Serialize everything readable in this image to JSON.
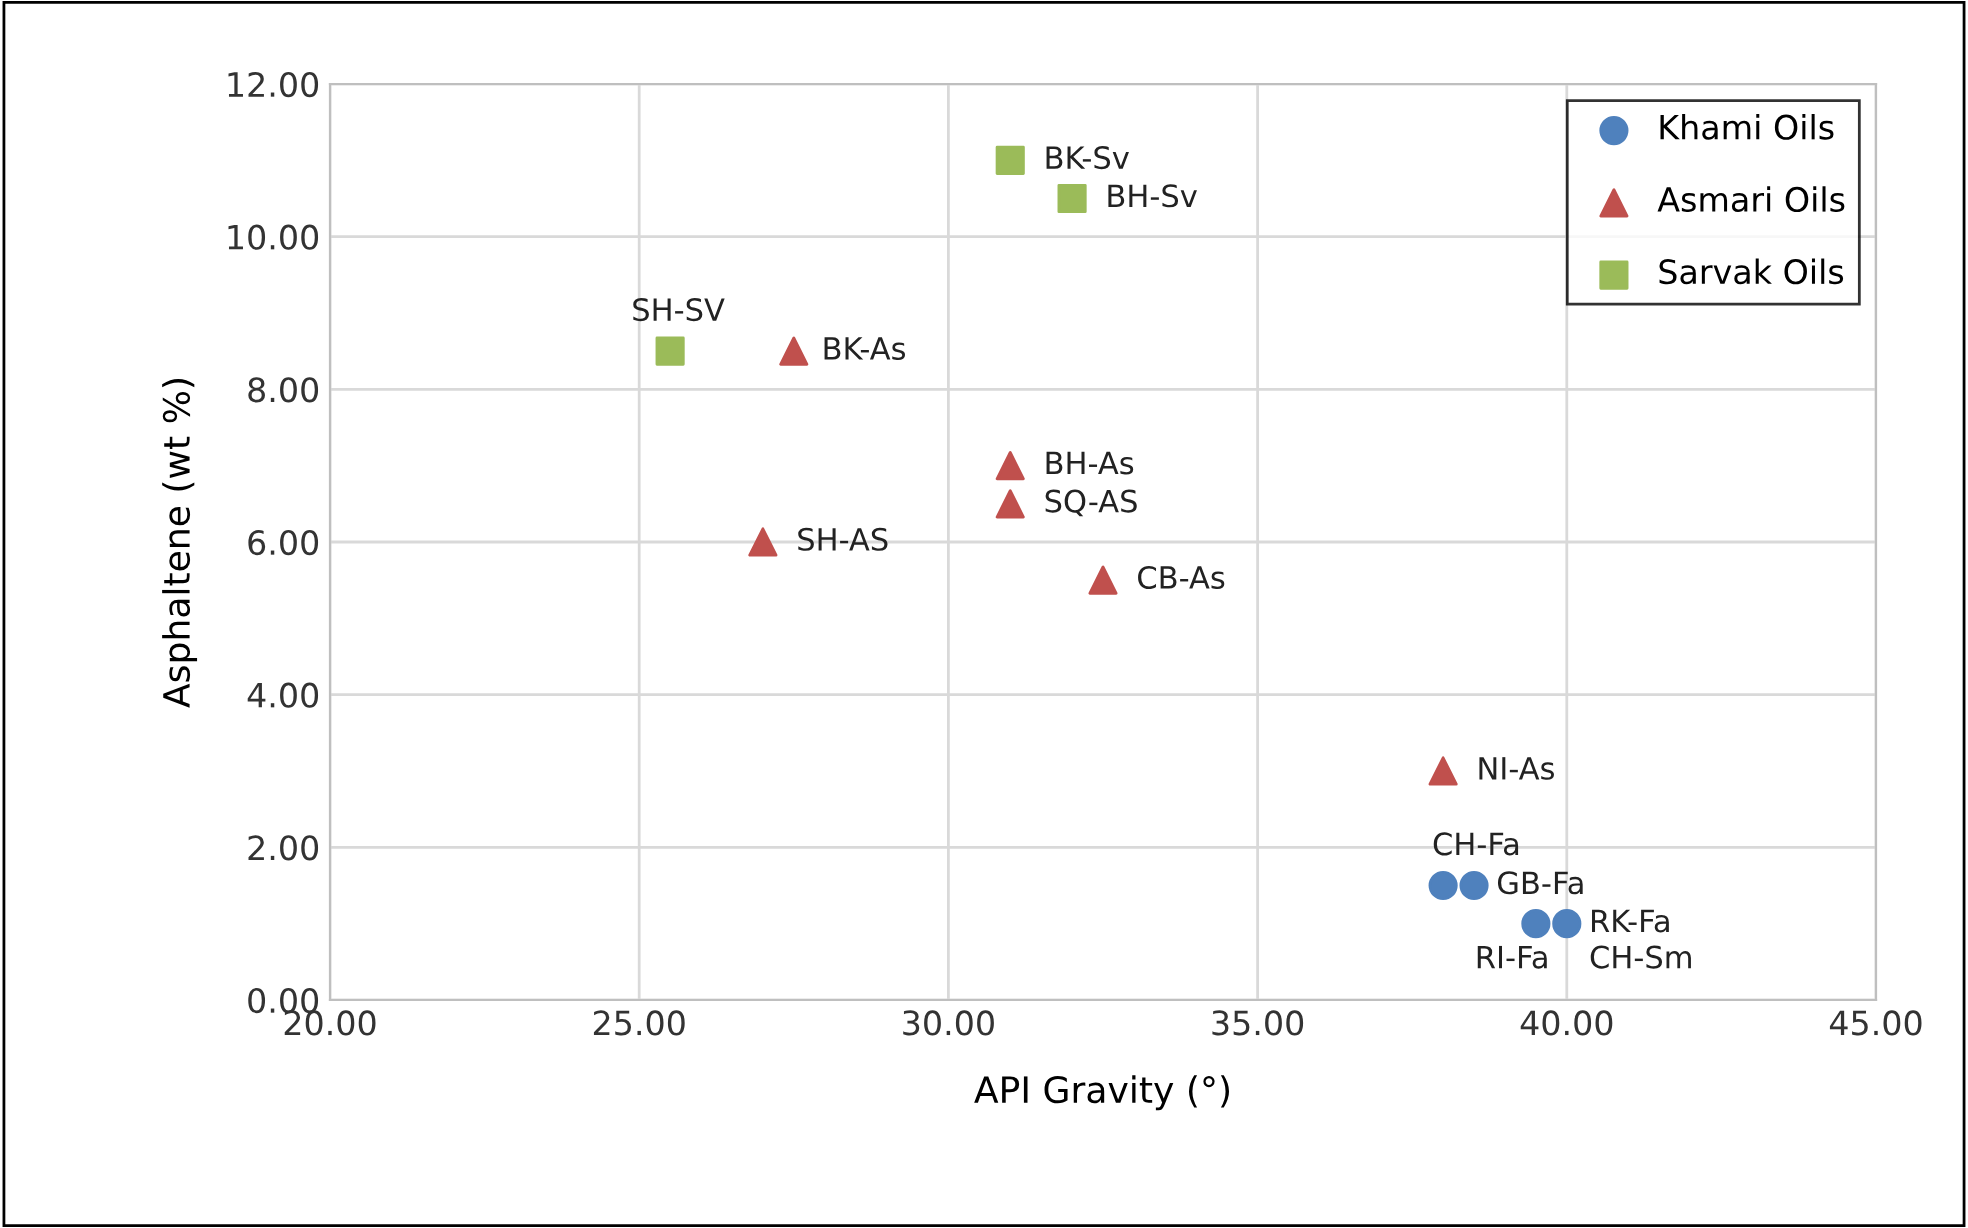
{
  "chart_data": {
    "type": "scatter",
    "xlabel": "API Gravity (°)",
    "ylabel": "Asphaltene (wt %)",
    "xlim": [
      20,
      45
    ],
    "xticks": [
      {
        "value": 20,
        "label": "20.00"
      },
      {
        "value": 25,
        "label": "25.00"
      },
      {
        "value": 30,
        "label": "30.00"
      },
      {
        "value": 35,
        "label": "35.00"
      },
      {
        "value": 40,
        "label": "40.00"
      },
      {
        "value": 45,
        "label": "45.00"
      }
    ],
    "ylim": [
      0,
      12
    ],
    "yticks": [
      {
        "value": 0,
        "label": "0.00"
      },
      {
        "value": 2,
        "label": "2.00"
      },
      {
        "value": 4,
        "label": "4.00"
      },
      {
        "value": 6,
        "label": "6.00"
      },
      {
        "value": 8,
        "label": "8.00"
      },
      {
        "value": 10,
        "label": "10.00"
      },
      {
        "value": 12,
        "label": "12.00"
      }
    ],
    "grid": true,
    "legend": "top right",
    "series": [
      {
        "name": "Khami Oils",
        "color": "#4f81bd",
        "marker": "circle",
        "x": [
          38,
          38.5,
          39.5,
          40
        ],
        "values": [
          1.5,
          1.5,
          1.0,
          1.0
        ]
      },
      {
        "name": "Asmari Oils",
        "color": "#c0504d",
        "marker": "triangle",
        "x": [
          27.5,
          27,
          31,
          31,
          32.5,
          38
        ],
        "values": [
          8.5,
          6.0,
          7.0,
          6.5,
          5.5,
          3.0
        ]
      },
      {
        "name": "Sarvak Oils",
        "color": "#9bbb59",
        "marker": "square",
        "x": [
          31,
          32,
          25.5
        ],
        "values": [
          11.0,
          10.5,
          8.5
        ]
      }
    ],
    "annotations": [
      {
        "text": "CH-Fa",
        "x": 38,
        "y": 1.5
      },
      {
        "text": "GB-Fa",
        "x": 38.5,
        "y": 1.5
      },
      {
        "text": "RI-Fa",
        "x": 39.5,
        "y": 1.0
      },
      {
        "text": "RK-Fa",
        "x": 40,
        "y": 1.0
      },
      {
        "text": "CH-Sm",
        "x": 40,
        "y": 1.0
      },
      {
        "text": "BK-As",
        "x": 27.5,
        "y": 8.5
      },
      {
        "text": "SH-AS",
        "x": 27,
        "y": 6.0
      },
      {
        "text": "BH-As",
        "x": 31,
        "y": 7.0
      },
      {
        "text": "SQ-AS",
        "x": 31,
        "y": 6.5
      },
      {
        "text": "CB-As",
        "x": 32.5,
        "y": 5.5
      },
      {
        "text": "NI-As",
        "x": 38,
        "y": 3.0
      },
      {
        "text": "BK-Sv",
        "x": 31,
        "y": 11.0
      },
      {
        "text": "BH-Sv",
        "x": 32,
        "y": 10.5
      },
      {
        "text": "SH-SV",
        "x": 25.5,
        "y": 8.5
      }
    ]
  }
}
